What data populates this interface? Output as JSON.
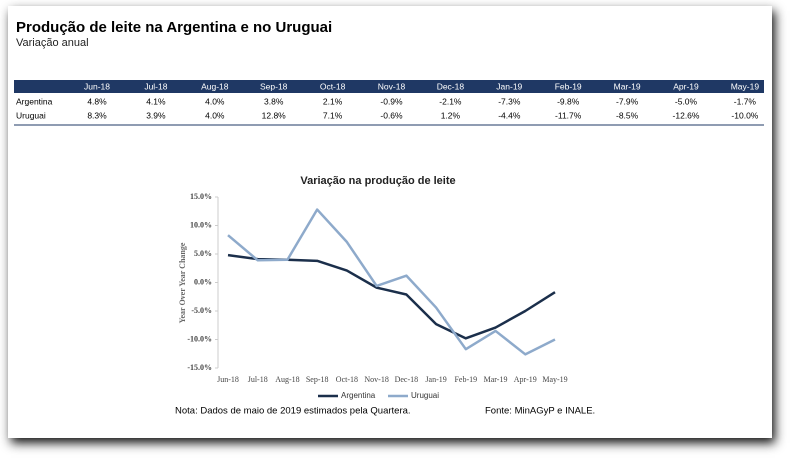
{
  "header": {
    "title": "Produção de leite na Argentina e no Uruguai",
    "subtitle": "Variação anual"
  },
  "table": {
    "columns": [
      "Jun-18",
      "Jul-18",
      "Aug-18",
      "Sep-18",
      "Oct-18",
      "Nov-18",
      "Dec-18",
      "Jan-19",
      "Feb-19",
      "Mar-19",
      "Apr-19",
      "May-19"
    ],
    "rows": [
      {
        "label": "Argentina",
        "cells": [
          "4.8%",
          "4.1%",
          "4.0%",
          "3.8%",
          "2.1%",
          "-0.9%",
          "-2.1%",
          "-7.3%",
          "-9.8%",
          "-7.9%",
          "-5.0%",
          "-1.7%"
        ]
      },
      {
        "label": "Uruguai",
        "cells": [
          "8.3%",
          "3.9%",
          "4.0%",
          "12.8%",
          "7.1%",
          "-0.6%",
          "1.2%",
          "-4.4%",
          "-11.7%",
          "-8.5%",
          "-12.6%",
          "-10.0%"
        ]
      }
    ]
  },
  "chart_data": {
    "type": "line",
    "title": "Variação na produção de leite",
    "y_label": "Year Over Year Change",
    "categories": [
      "Jun-18",
      "Jul-18",
      "Aug-18",
      "Sep-18",
      "Oct-18",
      "Nov-18",
      "Dec-18",
      "Jan-19",
      "Feb-19",
      "Mar-19",
      "Apr-19",
      "May-19"
    ],
    "series": [
      {
        "name": "Argentina",
        "color": "#1b2f4b",
        "values": [
          4.8,
          4.1,
          4.0,
          3.8,
          2.1,
          -0.9,
          -2.1,
          -7.3,
          -9.8,
          -7.9,
          -5.0,
          -1.7
        ]
      },
      {
        "name": "Uruguai",
        "color": "#8eaacb",
        "values": [
          8.3,
          3.9,
          4.0,
          12.8,
          7.1,
          -0.6,
          1.2,
          -4.4,
          -11.7,
          -8.5,
          -12.6,
          -10.0
        ]
      }
    ],
    "ylim": [
      -15,
      15
    ],
    "yticks": [
      {
        "value": -15,
        "label": "-15.0%"
      },
      {
        "value": -10,
        "label": "-10.0%"
      },
      {
        "value": -5,
        "label": "-5.0%"
      },
      {
        "value": 0,
        "label": "0.0%"
      },
      {
        "value": 5,
        "label": "5.0%"
      },
      {
        "value": 10,
        "label": "10.0%"
      },
      {
        "value": 15,
        "label": "15.0%"
      }
    ],
    "legend": "bottom"
  },
  "footer": {
    "note": "Nota: Dados de maio de 2019 estimados pela Quartera.",
    "source": "Fonte: MinAGyP e INALE."
  }
}
